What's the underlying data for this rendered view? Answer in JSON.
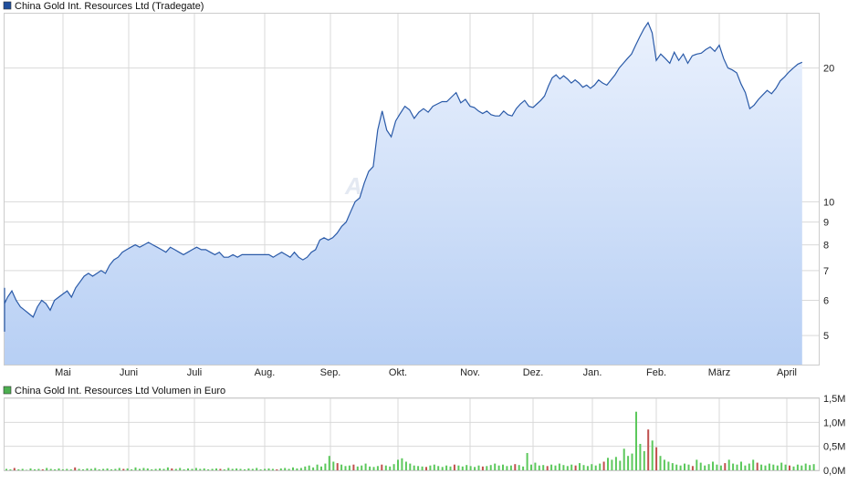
{
  "colors": {
    "price_line": "#2a5aa8",
    "price_fill_top": "#eaf1fd",
    "price_fill_bottom": "#b7cff4",
    "grid": "#d9d9d9",
    "volume_up": "#5cc85c",
    "volume_down": "#c0504d",
    "legend_price_box": "#1f4e9c",
    "legend_volume_box": "#4caf50"
  },
  "watermark": "ARIVA.DE",
  "chart_data": [
    {
      "type": "area",
      "title": "China Gold Int. Resources Ltd (Tradegate)",
      "y_scale": "log",
      "ylim": [
        4.3,
        26.5
      ],
      "y_ticks": [
        {
          "value": 5,
          "label": "5"
        },
        {
          "value": 6,
          "label": "6"
        },
        {
          "value": 7,
          "label": "7"
        },
        {
          "value": 8,
          "label": "8"
        },
        {
          "value": 9,
          "label": "9"
        },
        {
          "value": 10,
          "label": "10"
        },
        {
          "value": 20,
          "label": "20"
        }
      ],
      "x_ticks": [
        "Mai",
        "Juni",
        "Juli",
        "Aug.",
        "Sep.",
        "Okt.",
        "Nov.",
        "Dez.",
        "Jan.",
        "Feb.",
        "März",
        "April"
      ],
      "grid": true,
      "legend": "top-left",
      "series": [
        {
          "name": "China Gold Int. Resources Ltd (Tradegate)",
          "points": [
            [
              "03-24",
              6.4
            ],
            [
              "03-26",
              6.2
            ],
            [
              "03-28",
              5.4
            ],
            [
              "03-30",
              5.1
            ],
            [
              "04-01",
              5.6
            ],
            [
              "04-03",
              5.9
            ],
            [
              "04-05",
              6.1
            ],
            [
              "04-07",
              6.3
            ],
            [
              "04-09",
              6.0
            ],
            [
              "04-11",
              5.8
            ],
            [
              "04-13",
              5.7
            ],
            [
              "04-15",
              5.6
            ],
            [
              "04-17",
              5.5
            ],
            [
              "04-19",
              5.8
            ],
            [
              "04-21",
              6.0
            ],
            [
              "04-23",
              5.9
            ],
            [
              "04-25",
              5.7
            ],
            [
              "04-27",
              6.0
            ],
            [
              "04-29",
              6.1
            ],
            [
              "05-01",
              6.2
            ],
            [
              "05-03",
              6.3
            ],
            [
              "05-05",
              6.1
            ],
            [
              "05-07",
              6.4
            ],
            [
              "05-09",
              6.6
            ],
            [
              "05-11",
              6.8
            ],
            [
              "05-13",
              6.9
            ],
            [
              "05-15",
              6.8
            ],
            [
              "05-17",
              6.9
            ],
            [
              "05-19",
              7.0
            ],
            [
              "05-21",
              6.9
            ],
            [
              "05-23",
              7.2
            ],
            [
              "05-25",
              7.4
            ],
            [
              "05-27",
              7.5
            ],
            [
              "05-29",
              7.7
            ],
            [
              "05-31",
              7.8
            ],
            [
              "06-02",
              7.9
            ],
            [
              "06-04",
              8.0
            ],
            [
              "06-06",
              7.9
            ],
            [
              "06-08",
              8.0
            ],
            [
              "06-10",
              8.1
            ],
            [
              "06-12",
              8.0
            ],
            [
              "06-14",
              7.9
            ],
            [
              "06-16",
              7.8
            ],
            [
              "06-18",
              7.7
            ],
            [
              "06-20",
              7.9
            ],
            [
              "06-22",
              7.8
            ],
            [
              "06-24",
              7.7
            ],
            [
              "06-26",
              7.6
            ],
            [
              "06-28",
              7.7
            ],
            [
              "06-30",
              7.8
            ],
            [
              "07-02",
              7.9
            ],
            [
              "07-04",
              7.8
            ],
            [
              "07-06",
              7.8
            ],
            [
              "07-08",
              7.7
            ],
            [
              "07-10",
              7.6
            ],
            [
              "07-12",
              7.7
            ],
            [
              "07-14",
              7.5
            ],
            [
              "07-16",
              7.5
            ],
            [
              "07-18",
              7.6
            ],
            [
              "07-20",
              7.5
            ],
            [
              "07-22",
              7.6
            ],
            [
              "07-24",
              7.6
            ],
            [
              "07-26",
              7.6
            ],
            [
              "07-28",
              7.6
            ],
            [
              "07-30",
              7.6
            ],
            [
              "08-01",
              7.6
            ],
            [
              "08-03",
              7.6
            ],
            [
              "08-05",
              7.5
            ],
            [
              "08-07",
              7.6
            ],
            [
              "08-09",
              7.7
            ],
            [
              "08-11",
              7.6
            ],
            [
              "08-13",
              7.5
            ],
            [
              "08-15",
              7.7
            ],
            [
              "08-17",
              7.5
            ],
            [
              "08-19",
              7.4
            ],
            [
              "08-21",
              7.5
            ],
            [
              "08-23",
              7.7
            ],
            [
              "08-25",
              7.8
            ],
            [
              "08-27",
              8.2
            ],
            [
              "08-29",
              8.3
            ],
            [
              "08-31",
              8.2
            ],
            [
              "09-02",
              8.3
            ],
            [
              "09-04",
              8.5
            ],
            [
              "09-06",
              8.8
            ],
            [
              "09-08",
              9.0
            ],
            [
              "09-10",
              9.5
            ],
            [
              "09-12",
              10.0
            ],
            [
              "09-14",
              10.2
            ],
            [
              "09-16",
              11.0
            ],
            [
              "09-18",
              11.7
            ],
            [
              "09-20",
              12.0
            ],
            [
              "09-22",
              14.5
            ],
            [
              "09-24",
              16.0
            ],
            [
              "09-26",
              14.5
            ],
            [
              "09-28",
              14.0
            ],
            [
              "09-30",
              15.2
            ],
            [
              "10-02",
              15.8
            ],
            [
              "10-04",
              16.4
            ],
            [
              "10-06",
              16.1
            ],
            [
              "10-08",
              15.4
            ],
            [
              "10-10",
              15.9
            ],
            [
              "10-12",
              16.2
            ],
            [
              "10-14",
              15.9
            ],
            [
              "10-16",
              16.4
            ],
            [
              "10-18",
              16.6
            ],
            [
              "10-20",
              16.8
            ],
            [
              "10-22",
              16.8
            ],
            [
              "10-24",
              17.2
            ],
            [
              "10-26",
              17.6
            ],
            [
              "10-28",
              16.7
            ],
            [
              "10-30",
              17.0
            ],
            [
              "11-01",
              16.4
            ],
            [
              "11-03",
              16.3
            ],
            [
              "11-05",
              16.0
            ],
            [
              "11-07",
              15.8
            ],
            [
              "11-09",
              16.0
            ],
            [
              "11-11",
              15.7
            ],
            [
              "11-13",
              15.6
            ],
            [
              "11-15",
              15.6
            ],
            [
              "11-17",
              16.0
            ],
            [
              "11-19",
              15.7
            ],
            [
              "11-21",
              15.6
            ],
            [
              "11-23",
              16.2
            ],
            [
              "11-25",
              16.6
            ],
            [
              "11-27",
              16.9
            ],
            [
              "11-29",
              16.4
            ],
            [
              "12-01",
              16.3
            ],
            [
              "12-03",
              16.6
            ],
            [
              "12-05",
              16.9
            ],
            [
              "12-07",
              17.3
            ],
            [
              "12-09",
              18.2
            ],
            [
              "12-11",
              19.0
            ],
            [
              "12-13",
              19.3
            ],
            [
              "12-15",
              18.9
            ],
            [
              "12-17",
              19.2
            ],
            [
              "12-19",
              18.9
            ],
            [
              "12-21",
              18.5
            ],
            [
              "12-23",
              18.8
            ],
            [
              "12-25",
              18.5
            ],
            [
              "12-27",
              18.1
            ],
            [
              "12-29",
              18.3
            ],
            [
              "12-31",
              18.0
            ],
            [
              "01-02",
              18.3
            ],
            [
              "01-04",
              18.8
            ],
            [
              "01-06",
              18.5
            ],
            [
              "01-08",
              18.3
            ],
            [
              "01-10",
              18.8
            ],
            [
              "01-12",
              19.3
            ],
            [
              "01-14",
              20.0
            ],
            [
              "01-16",
              20.5
            ],
            [
              "01-18",
              21.0
            ],
            [
              "01-20",
              21.5
            ],
            [
              "01-22",
              22.5
            ],
            [
              "01-24",
              23.5
            ],
            [
              "01-26",
              24.5
            ],
            [
              "01-28",
              25.3
            ],
            [
              "01-30",
              24.0
            ],
            [
              "02-01",
              20.8
            ],
            [
              "02-03",
              21.5
            ],
            [
              "02-05",
              21.0
            ],
            [
              "02-07",
              20.5
            ],
            [
              "02-09",
              21.7
            ],
            [
              "02-11",
              20.8
            ],
            [
              "02-13",
              21.5
            ],
            [
              "02-15",
              20.5
            ],
            [
              "02-17",
              21.3
            ],
            [
              "02-19",
              21.5
            ],
            [
              "02-21",
              21.6
            ],
            [
              "02-23",
              22.0
            ],
            [
              "02-25",
              22.3
            ],
            [
              "02-27",
              21.8
            ],
            [
              "03-01",
              22.5
            ],
            [
              "03-03",
              21.0
            ],
            [
              "03-05",
              20.0
            ],
            [
              "03-07",
              19.8
            ],
            [
              "03-09",
              19.5
            ],
            [
              "03-11",
              18.4
            ],
            [
              "03-13",
              17.6
            ],
            [
              "03-15",
              16.2
            ],
            [
              "03-17",
              16.5
            ],
            [
              "03-19",
              17.0
            ],
            [
              "03-21",
              17.4
            ],
            [
              "03-23",
              17.8
            ],
            [
              "03-25",
              17.5
            ],
            [
              "03-27",
              18.0
            ],
            [
              "03-29",
              18.7
            ],
            [
              "03-31",
              19.1
            ],
            [
              "04-02",
              19.6
            ],
            [
              "04-04",
              20.0
            ],
            [
              "04-06",
              20.4
            ],
            [
              "04-08",
              20.6
            ]
          ]
        }
      ]
    },
    {
      "type": "bar",
      "title": "China Gold Int. Resources Ltd Volumen in Euro",
      "ylim": [
        0,
        1.5
      ],
      "y_ticks": [
        {
          "value": 0,
          "label": "0,0M"
        },
        {
          "value": 0.5,
          "label": "0,5M"
        },
        {
          "value": 1.0,
          "label": "1,0M"
        },
        {
          "value": 1.5,
          "label": "1,5M"
        }
      ],
      "x_ticks": [
        "Mai",
        "Juni",
        "Juli",
        "Aug.",
        "Sep.",
        "Okt.",
        "Nov.",
        "Dez.",
        "Jan.",
        "Feb.",
        "März",
        "April"
      ],
      "grid": true,
      "legend": "top-left",
      "series": [
        {
          "name": "China Gold Int. Resources Ltd Volumen in Euro",
          "values_millions": [
            0.03,
            0.02,
            0.05,
            0.02,
            0.03,
            0.01,
            0.04,
            0.02,
            0.03,
            0.02,
            0.05,
            0.03,
            0.02,
            0.04,
            0.02,
            0.03,
            0.02,
            0.06,
            0.03,
            0.02,
            0.04,
            0.03,
            0.05,
            0.02,
            0.03,
            0.04,
            0.02,
            0.03,
            0.05,
            0.03,
            0.04,
            0.02,
            0.06,
            0.03,
            0.05,
            0.04,
            0.02,
            0.03,
            0.04,
            0.03,
            0.06,
            0.04,
            0.03,
            0.05,
            0.02,
            0.04,
            0.03,
            0.05,
            0.03,
            0.04,
            0.02,
            0.03,
            0.04,
            0.03,
            0.02,
            0.05,
            0.03,
            0.04,
            0.03,
            0.02,
            0.04,
            0.03,
            0.05,
            0.02,
            0.03,
            0.04,
            0.03,
            0.02,
            0.04,
            0.05,
            0.03,
            0.06,
            0.04,
            0.05,
            0.08,
            0.1,
            0.06,
            0.12,
            0.08,
            0.14,
            0.3,
            0.18,
            0.15,
            0.12,
            0.09,
            0.1,
            0.12,
            0.08,
            0.1,
            0.14,
            0.08,
            0.07,
            0.09,
            0.12,
            0.1,
            0.08,
            0.13,
            0.22,
            0.25,
            0.18,
            0.14,
            0.1,
            0.09,
            0.08,
            0.07,
            0.1,
            0.12,
            0.09,
            0.07,
            0.1,
            0.08,
            0.12,
            0.1,
            0.08,
            0.11,
            0.09,
            0.07,
            0.1,
            0.08,
            0.09,
            0.11,
            0.14,
            0.1,
            0.12,
            0.09,
            0.1,
            0.13,
            0.11,
            0.08,
            0.36,
            0.12,
            0.16,
            0.1,
            0.11,
            0.09,
            0.12,
            0.1,
            0.14,
            0.11,
            0.09,
            0.12,
            0.1,
            0.15,
            0.11,
            0.09,
            0.13,
            0.1,
            0.14,
            0.18,
            0.26,
            0.22,
            0.28,
            0.2,
            0.45,
            0.3,
            0.35,
            1.22,
            0.55,
            0.4,
            0.85,
            0.62,
            0.48,
            0.3,
            0.22,
            0.18,
            0.15,
            0.12,
            0.1,
            0.14,
            0.12,
            0.09,
            0.22,
            0.16,
            0.1,
            0.13,
            0.18,
            0.12,
            0.1,
            0.15,
            0.22,
            0.14,
            0.12,
            0.18,
            0.1,
            0.14,
            0.22,
            0.16,
            0.12,
            0.1,
            0.14,
            0.12,
            0.1,
            0.16,
            0.12,
            0.1,
            0.08,
            0.12,
            0.1,
            0.14,
            0.11,
            0.13
          ],
          "down_indices": [
            2,
            9,
            17,
            29,
            41,
            53,
            67,
            82,
            86,
            93,
            104,
            111,
            118,
            126,
            134,
            141,
            148,
            159,
            161,
            170,
            178,
            186,
            194,
            201
          ]
        }
      ]
    }
  ]
}
